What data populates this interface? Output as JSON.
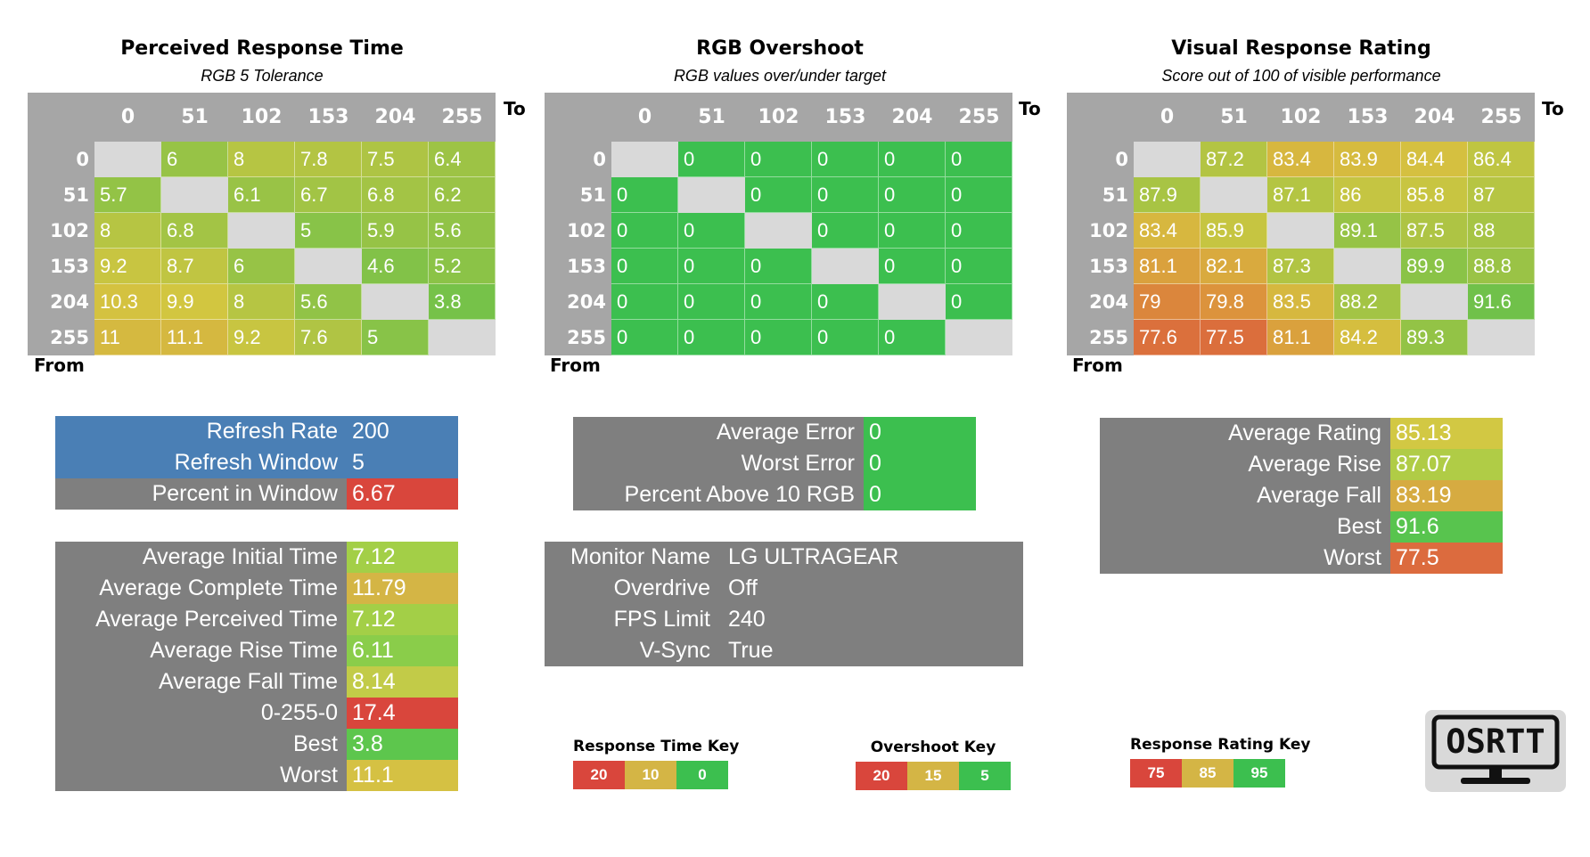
{
  "colors": {
    "header_gray": "#a6a6a6",
    "diag_gray": "#d9d9d9",
    "panel_gray": "#7f7f7f",
    "blue": "#4a7fb5",
    "red": "#d9463c",
    "orange": "#dc6b3e",
    "yellow": "#d4c640",
    "green": "#3cbf4f"
  },
  "labels": {
    "to": "To",
    "from": "From"
  },
  "chart_data": [
    {
      "type": "heatmap",
      "title": "Perceived Response Time",
      "subtitle": "RGB 5 Tolerance",
      "categories": [
        "0",
        "51",
        "102",
        "153",
        "204",
        "255"
      ],
      "xlabel": "To",
      "ylabel": "From",
      "scale": {
        "low_good": true,
        "green": 0,
        "yellow": 10,
        "red": 20
      },
      "values": [
        [
          null,
          "6",
          "8",
          "7.8",
          "7.5",
          "6.4"
        ],
        [
          "5.7",
          null,
          "6.1",
          "6.7",
          "6.8",
          "6.2"
        ],
        [
          "8",
          "6.8",
          null,
          "5",
          "5.9",
          "5.6"
        ],
        [
          "9.2",
          "8.7",
          "6",
          null,
          "4.6",
          "5.2"
        ],
        [
          "10.3",
          "9.9",
          "8",
          "5.6",
          null,
          "3.8"
        ],
        [
          "11",
          "11.1",
          "9.2",
          "7.6",
          "5",
          null
        ]
      ]
    },
    {
      "type": "heatmap",
      "title": "RGB Overshoot",
      "subtitle": "RGB values over/under target",
      "categories": [
        "0",
        "51",
        "102",
        "153",
        "204",
        "255"
      ],
      "xlabel": "To",
      "ylabel": "From",
      "scale": {
        "low_good": true,
        "green": 5,
        "yellow": 15,
        "red": 20
      },
      "values": [
        [
          null,
          "0",
          "0",
          "0",
          "0",
          "0"
        ],
        [
          "0",
          null,
          "0",
          "0",
          "0",
          "0"
        ],
        [
          "0",
          "0",
          null,
          "0",
          "0",
          "0"
        ],
        [
          "0",
          "0",
          "0",
          null,
          "0",
          "0"
        ],
        [
          "0",
          "0",
          "0",
          "0",
          null,
          "0"
        ],
        [
          "0",
          "0",
          "0",
          "0",
          "0",
          null
        ]
      ]
    },
    {
      "type": "heatmap",
      "title": "Visual Response Rating",
      "subtitle": "Score out of 100 of visible performance",
      "categories": [
        "0",
        "51",
        "102",
        "153",
        "204",
        "255"
      ],
      "xlabel": "To",
      "ylabel": "From",
      "scale": {
        "low_good": false,
        "red": 75,
        "yellow": 85,
        "green": 95
      },
      "values": [
        [
          null,
          "87.2",
          "83.4",
          "83.9",
          "84.4",
          "86.4"
        ],
        [
          "87.9",
          null,
          "87.1",
          "86",
          "85.8",
          "87"
        ],
        [
          "83.4",
          "85.9",
          null,
          "89.1",
          "87.5",
          "88"
        ],
        [
          "81.1",
          "82.1",
          "87.3",
          null,
          "89.9",
          "88.8"
        ],
        [
          "79",
          "79.8",
          "83.5",
          "88.2",
          null,
          "91.6"
        ],
        [
          "77.6",
          "77.5",
          "81.1",
          "84.2",
          "89.3",
          null
        ]
      ]
    }
  ],
  "refresh": {
    "rows": [
      {
        "label": "Refresh Rate",
        "value": "200",
        "color": "#4a7fb5"
      },
      {
        "label": "Refresh Window",
        "value": "5",
        "color": "#4a7fb5"
      },
      {
        "label": "Percent in Window",
        "value": "6.67",
        "color": "#d9463c"
      }
    ]
  },
  "times": {
    "rows": [
      {
        "label": "Average Initial Time",
        "value": "7.12",
        "color": "#a3cf47"
      },
      {
        "label": "Average Complete Time",
        "value": "11.79",
        "color": "#d4b545"
      },
      {
        "label": "Average Perceived Time",
        "value": "7.12",
        "color": "#a3cf47"
      },
      {
        "label": "Average Rise Time",
        "value": "6.11",
        "color": "#8acd4a"
      },
      {
        "label": "Average Fall Time",
        "value": "8.14",
        "color": "#c2cb48"
      },
      {
        "label": "0-255-0",
        "value": "17.4",
        "color": "#d9463c"
      },
      {
        "label": "Best",
        "value": "3.8",
        "color": "#5dc64d"
      },
      {
        "label": "Worst",
        "value": "11.1",
        "color": "#d5c143"
      }
    ]
  },
  "errors": {
    "rows": [
      {
        "label": "Average Error",
        "value": "0",
        "color": "#3cbf4f"
      },
      {
        "label": "Worst Error",
        "value": "0",
        "color": "#3cbf4f"
      },
      {
        "label": "Percent Above 10 RGB",
        "value": "0",
        "color": "#3cbf4f"
      }
    ]
  },
  "monitor": {
    "rows": [
      {
        "label": "Monitor Name",
        "value": "LG ULTRAGEAR"
      },
      {
        "label": "Overdrive",
        "value": "Off"
      },
      {
        "label": "FPS Limit",
        "value": "240"
      },
      {
        "label": "V-Sync",
        "value": "True"
      }
    ]
  },
  "ratings": {
    "rows": [
      {
        "label": "Average Rating",
        "value": "85.13",
        "color": "#d2c843"
      },
      {
        "label": "Average Rise",
        "value": "87.07",
        "color": "#b0cc46"
      },
      {
        "label": "Average Fall",
        "value": "83.19",
        "color": "#d6ab41"
      },
      {
        "label": "Best",
        "value": "91.6",
        "color": "#58c44e"
      },
      {
        "label": "Worst",
        "value": "77.5",
        "color": "#dc6b3e"
      }
    ]
  },
  "keys": [
    {
      "title": "Response Time Key",
      "cells": [
        {
          "text": "20",
          "color": "#d9463c"
        },
        {
          "text": "10",
          "color": "#d4b545"
        },
        {
          "text": "0",
          "color": "#3cbf4f"
        }
      ]
    },
    {
      "title": "Overshoot Key",
      "cells": [
        {
          "text": "20",
          "color": "#d9463c"
        },
        {
          "text": "15",
          "color": "#d4b545"
        },
        {
          "text": "5",
          "color": "#3cbf4f"
        }
      ]
    },
    {
      "title": "Response Rating Key",
      "cells": [
        {
          "text": "75",
          "color": "#d9463c"
        },
        {
          "text": "85",
          "color": "#d4b545"
        },
        {
          "text": "95",
          "color": "#3cbf4f"
        }
      ]
    }
  ],
  "logo": {
    "text": "OSRTT"
  }
}
